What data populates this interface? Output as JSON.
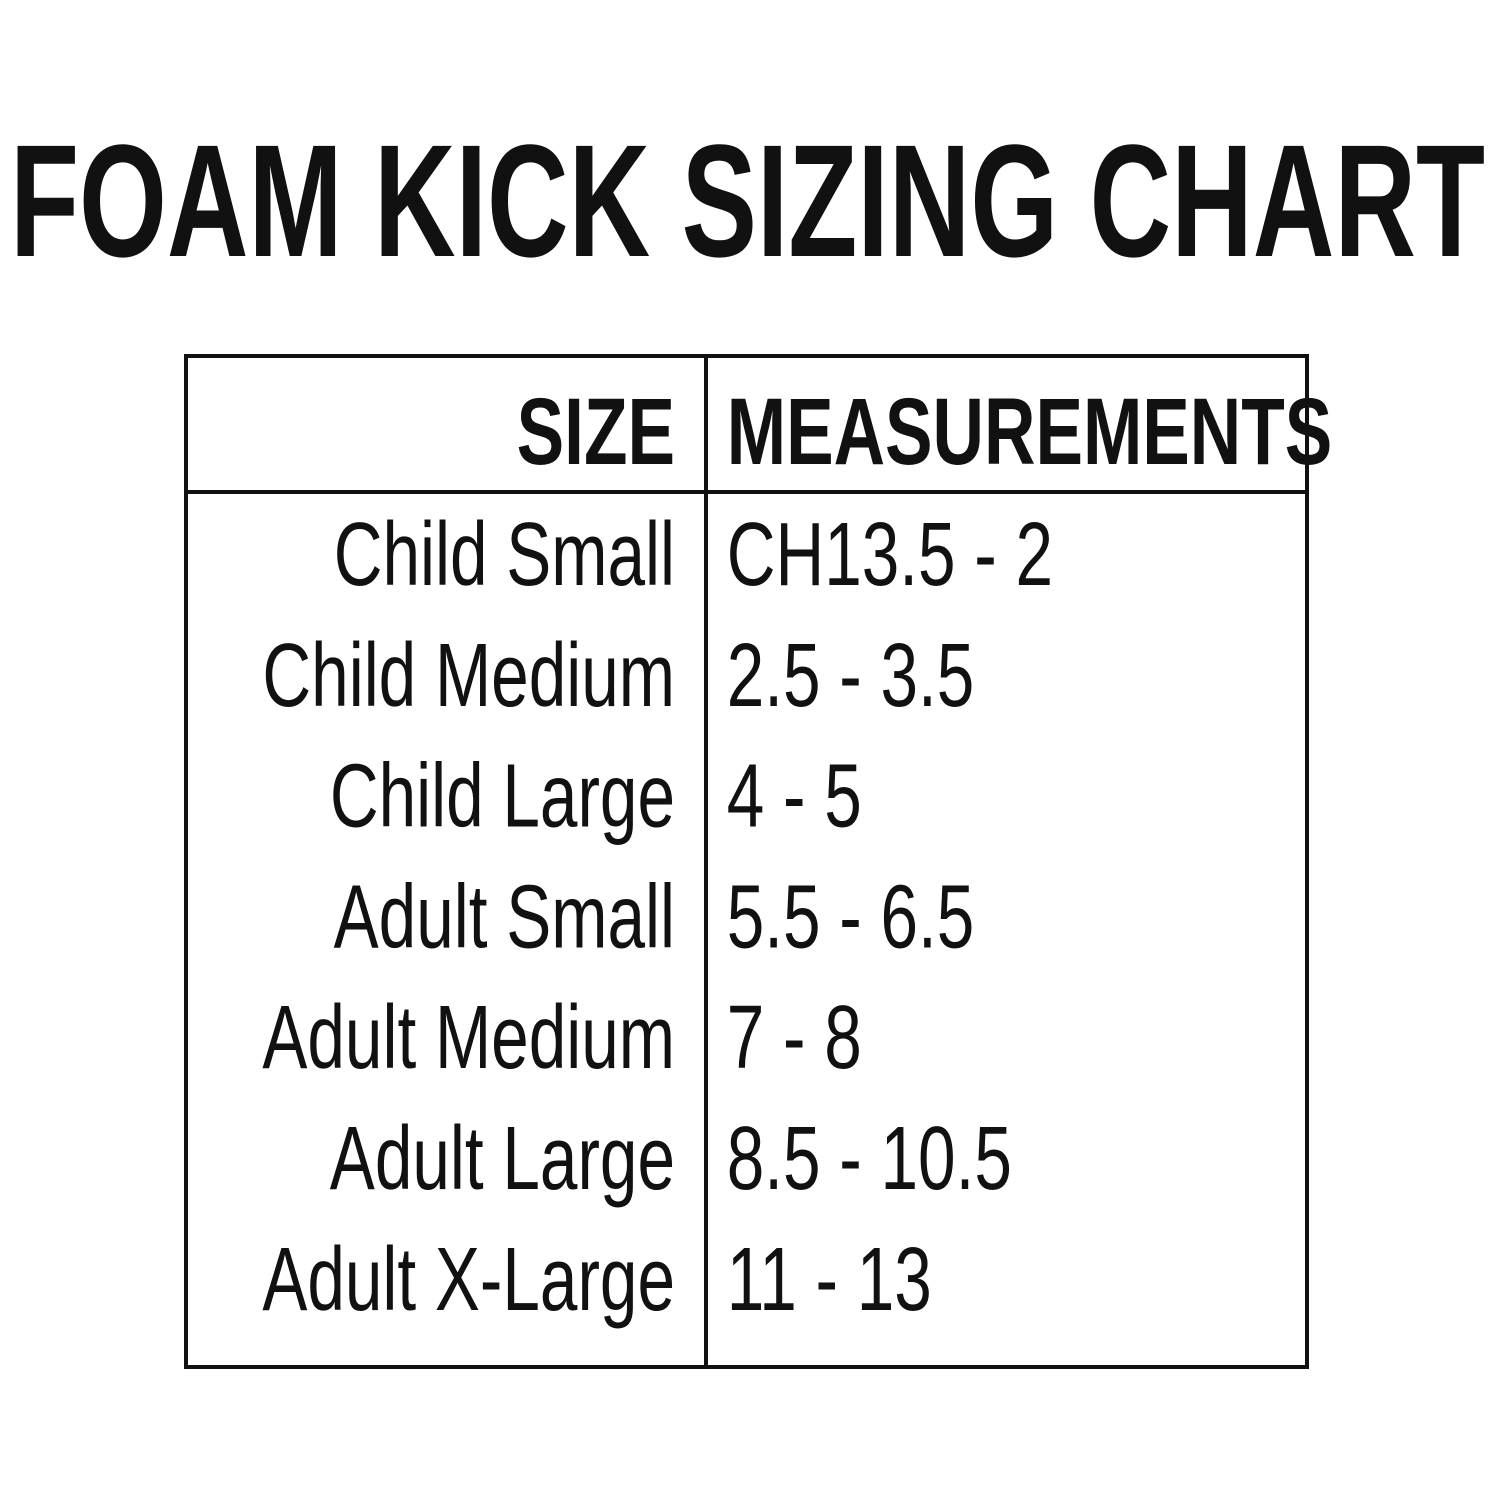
{
  "title": "FOAM KICK SIZING CHART",
  "table": {
    "headers": [
      "SIZE",
      "MEASUREMENTS"
    ],
    "rows": [
      [
        "Child Small",
        "CH13.5 - 2"
      ],
      [
        "Child Medium",
        "2.5 - 3.5"
      ],
      [
        "Child Large",
        "4 - 5"
      ],
      [
        "Adult Small",
        "5.5 - 6.5"
      ],
      [
        "Adult Medium",
        "7 - 8"
      ],
      [
        "Adult Large",
        "8.5 - 10.5"
      ],
      [
        "Adult X-Large",
        "11 - 13"
      ]
    ]
  }
}
